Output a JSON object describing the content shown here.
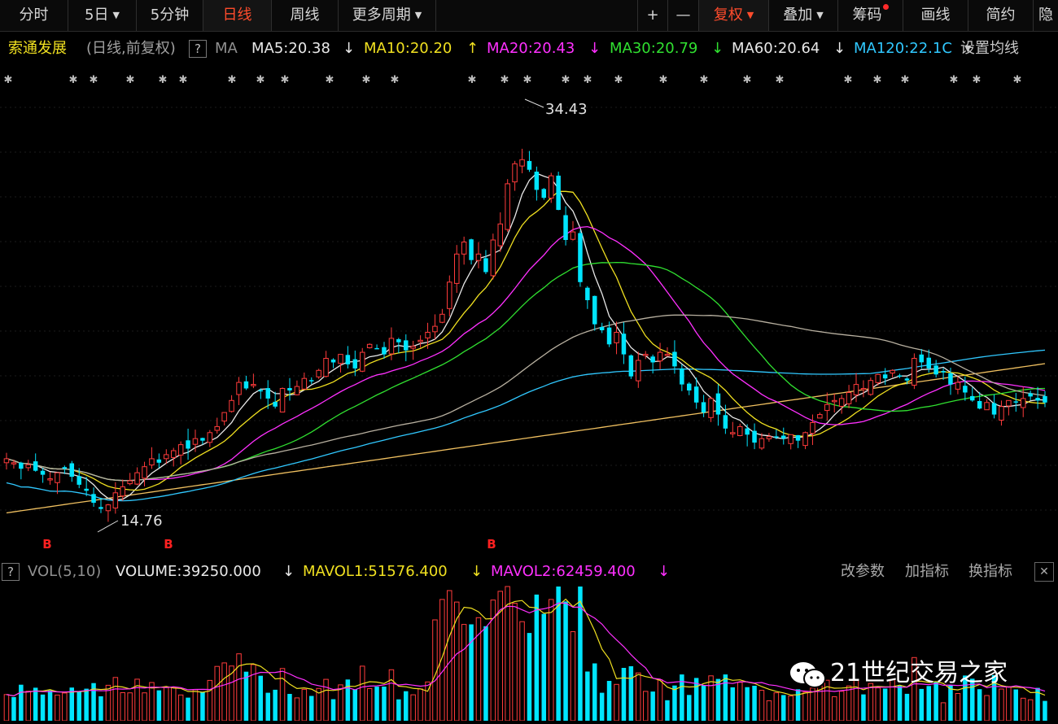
{
  "toolbar": {
    "left": [
      "分时",
      "5日",
      "5分钟",
      "日线",
      "周线",
      "更多周期"
    ],
    "right": [
      "+",
      "—",
      "复权",
      "叠加",
      "筹码",
      "画线",
      "简约",
      "隐"
    ]
  },
  "stock": {
    "name": "索通发展",
    "mode": "(日线,前复权)"
  },
  "ma_legend": {
    "help": "?",
    "label": "MA",
    "ma5": "MA5:20.38",
    "ma5_arrow": "↓",
    "ma10": "MA10:20.20",
    "ma10_arrow": "↑",
    "ma20": "MA20:20.43",
    "ma20_arrow": "↓",
    "ma30": "MA30:20.79",
    "ma30_arrow": "↓",
    "ma60": "MA60:20.64",
    "ma60_arrow": "↓",
    "ma120": "MA120:22.1C",
    "settings": "设置均线"
  },
  "colors": {
    "up": "#ff3b3b",
    "down": "#00e5ff",
    "ma5": "#e8e8e8",
    "ma10": "#f0e020",
    "ma20": "#ff30ff",
    "ma30": "#30e030",
    "ma60": "#e8e8e8",
    "ma120": "#30c8ff",
    "ma250": "#f0c060"
  },
  "chart_data": {
    "type": "candlestick",
    "title": "索通发展 (日线,前复权)",
    "high_label": "34.43",
    "low_label": "14.76",
    "price_range": [
      13.5,
      36.0
    ],
    "closes": [
      17.6,
      17.4,
      17.1,
      17.3,
      17.0,
      16.8,
      16.6,
      16.9,
      17.1,
      16.7,
      16.3,
      16.0,
      15.4,
      15.1,
      15.3,
      15.9,
      16.2,
      16.5,
      16.9,
      17.2,
      17.6,
      17.4,
      17.8,
      18.0,
      18.3,
      18.1,
      18.6,
      18.5,
      18.9,
      19.2,
      19.9,
      20.5,
      21.4,
      21.1,
      21.3,
      21.0,
      20.6,
      20.2,
      21.1,
      21.0,
      21.2,
      21.6,
      21.5,
      22.0,
      22.6,
      22.4,
      22.8,
      22.3,
      22.1,
      22.9,
      23.3,
      23.1,
      22.8,
      23.6,
      23.4,
      23.0,
      23.2,
      23.5,
      23.9,
      24.2,
      24.8,
      26.4,
      27.8,
      28.4,
      27.5,
      27.8,
      26.9,
      28.5,
      29.3,
      31.3,
      32.3,
      32.5,
      32.0,
      31.0,
      30.6,
      31.7,
      30.0,
      28.5,
      28.9,
      26.4,
      25.5,
      24.3,
      24.0,
      23.3,
      23.9,
      22.8,
      21.7,
      22.5,
      22.8,
      22.4,
      22.9,
      22.8,
      22.2,
      21.3,
      21.0,
      20.4,
      19.9,
      20.6,
      19.8,
      19.1,
      18.9,
      19.2,
      18.8,
      18.4,
      18.6,
      18.7,
      18.7,
      18.6,
      18.8,
      18.5,
      18.9,
      19.4,
      19.8,
      20.3,
      20.5,
      20.6,
      20.9,
      21.3,
      21.1,
      21.5,
      21.8,
      21.6,
      22.0,
      21.7,
      21.5,
      22.6,
      22.4,
      22.1,
      21.8,
      21.9,
      21.3,
      21.4,
      20.9,
      20.5,
      20.1,
      20.4,
      19.8,
      20.2,
      20.5,
      20.4,
      20.6,
      20.7,
      20.5,
      20.4
    ],
    "volume_label": "VOLUME:39250.000",
    "mavol1": "MAVOL1:51576.400",
    "mavol2": "MAVOL2:62459.400"
  },
  "vol_legend": {
    "help": "?",
    "label": "VOL(5,10)",
    "volume": "VOLUME:39250.000",
    "volume_arrow": "↓",
    "mavol1": "MAVOL1:51576.400",
    "mavol1_arrow": "↓",
    "mavol2": "MAVOL2:62459.400",
    "mavol2_arrow": "↓",
    "edit_params": "改参数",
    "add_indicator": "加指标",
    "swap_indicator": "换指标",
    "close": "✕"
  },
  "watermark": "21世纪交易之家"
}
